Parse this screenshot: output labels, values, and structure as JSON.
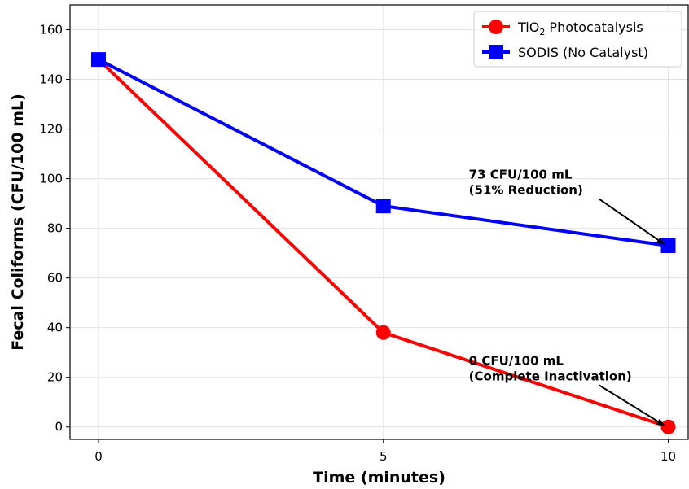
{
  "chart_data": {
    "type": "line",
    "xlabel": "Time (minutes)",
    "ylabel": "Fecal Coliforms (CFU/100 mL)",
    "xlim": [
      -0.5,
      10.35
    ],
    "ylim": [
      -5,
      170
    ],
    "x_ticks": [
      0,
      5,
      10
    ],
    "y_ticks": [
      0,
      20,
      40,
      60,
      80,
      100,
      120,
      140,
      160
    ],
    "grid": true,
    "legend_position": "top-right",
    "series": [
      {
        "name": "TiO₂ Photocatalysis",
        "name_parts": {
          "base": "TiO",
          "sub": "2",
          "rest": " Photocatalysis"
        },
        "color": "#ff0000",
        "marker": "circle",
        "x": [
          0,
          5,
          10
        ],
        "y": [
          148,
          38,
          0
        ]
      },
      {
        "name": "SODIS (No Catalyst)",
        "color": "#0000ff",
        "marker": "square",
        "x": [
          0,
          5,
          10
        ],
        "y": [
          148,
          89,
          73
        ]
      }
    ],
    "annotations": [
      {
        "lines": [
          "73 CFU/100 mL",
          "(51% Reduction)"
        ],
        "point": [
          10,
          73
        ],
        "text_at": [
          6.5,
          100
        ]
      },
      {
        "lines": [
          "0 CFU/100 mL",
          "(Complete Inactivation)"
        ],
        "point": [
          10,
          0
        ],
        "text_at": [
          6.5,
          25
        ]
      }
    ]
  }
}
